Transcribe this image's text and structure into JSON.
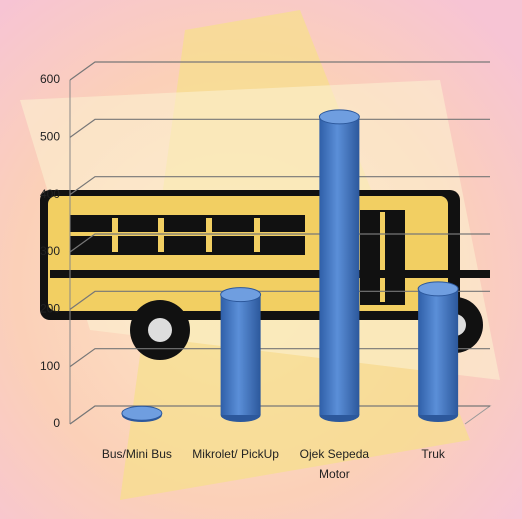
{
  "chart_data": {
    "type": "bar",
    "categories": [
      "Bus/Mini Bus",
      "Mikrolet/ PickUp",
      "Ojek Sepeda Motor",
      "Truk"
    ],
    "values": [
      3,
      210,
      520,
      220
    ],
    "color": "#4a7cc4",
    "ylim": [
      0,
      600
    ],
    "yticks": [
      0,
      100,
      200,
      300,
      400,
      500,
      600
    ],
    "grid": true
  }
}
